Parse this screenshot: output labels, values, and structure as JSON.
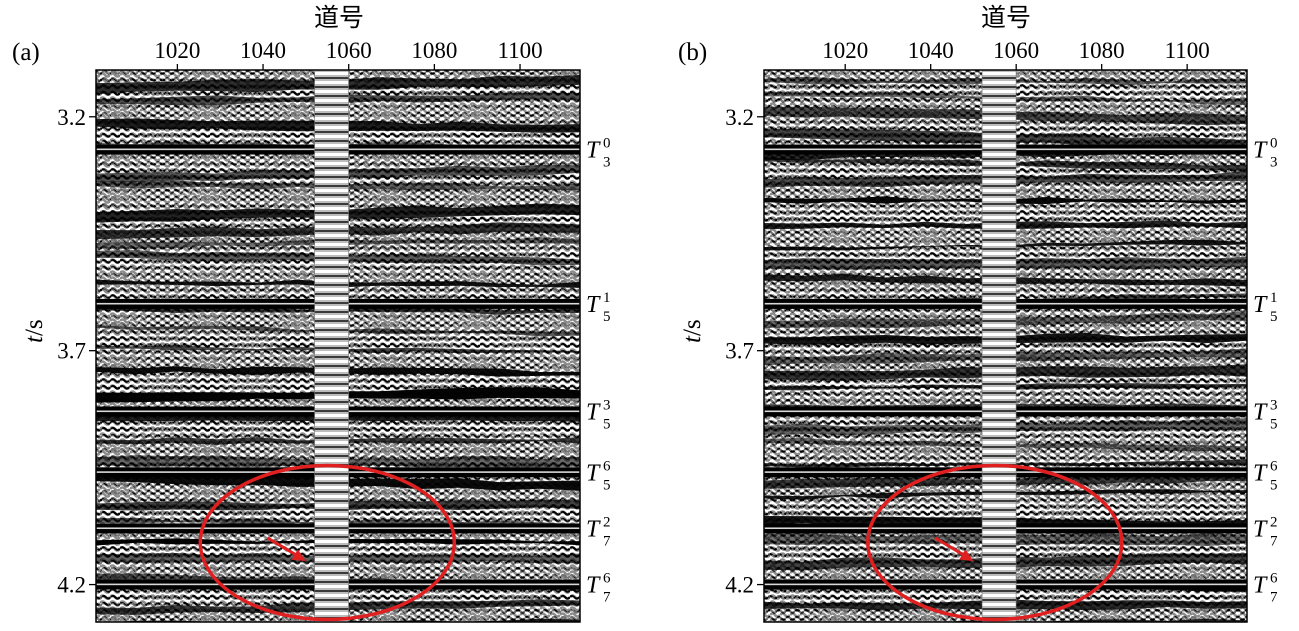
{
  "chart_data": [
    {
      "type": "heatmap",
      "panel_label": "(a)",
      "xlabel": "道号",
      "ylabel_var": "t",
      "ylabel_unit": "/s",
      "x_ticks": [
        1020,
        1040,
        1060,
        1080,
        1100
      ],
      "x_tick_labels": [
        "1020",
        "1040",
        "1060",
        "1080",
        "1100"
      ],
      "y_ticks": [
        3.2,
        3.7,
        4.2
      ],
      "y_tick_labels": [
        "3.2",
        "3.7",
        "4.2"
      ],
      "xlim": [
        1001,
        1114
      ],
      "ylim": [
        3.1,
        4.28
      ],
      "well_trace": 1056,
      "horizons": [
        {
          "base": "T",
          "sub": "3",
          "sup": "0",
          "t": 3.27
        },
        {
          "base": "T",
          "sub": "5",
          "sup": "1",
          "t": 3.6
        },
        {
          "base": "T",
          "sub": "5",
          "sup": "3",
          "t": 3.83
        },
        {
          "base": "T",
          "sub": "5",
          "sup": "6",
          "t": 3.96
        },
        {
          "base": "T",
          "sub": "7",
          "sup": "2",
          "t": 4.08
        },
        {
          "base": "T",
          "sub": "7",
          "sup": "6",
          "t": 4.2
        }
      ],
      "annotation_ellipse": {
        "center_trace": 1055,
        "center_t": 4.11,
        "color": "#e02020"
      },
      "annotation_arrow": {
        "from_trace": 1041,
        "from_t": 4.1,
        "to_trace": 1050,
        "to_t": 4.15,
        "color": "#e02020"
      }
    },
    {
      "type": "heatmap",
      "panel_label": "(b)",
      "xlabel": "道号",
      "ylabel_var": "t",
      "ylabel_unit": "/s",
      "x_ticks": [
        1020,
        1040,
        1060,
        1080,
        1100
      ],
      "x_tick_labels": [
        "1020",
        "1040",
        "1060",
        "1080",
        "1100"
      ],
      "y_ticks": [
        3.2,
        3.7,
        4.2
      ],
      "y_tick_labels": [
        "3.2",
        "3.7",
        "4.2"
      ],
      "xlim": [
        1001,
        1114
      ],
      "ylim": [
        3.1,
        4.28
      ],
      "well_trace": 1056,
      "horizons": [
        {
          "base": "T",
          "sub": "3",
          "sup": "0",
          "t": 3.27
        },
        {
          "base": "T",
          "sub": "5",
          "sup": "1",
          "t": 3.6
        },
        {
          "base": "T",
          "sub": "5",
          "sup": "3",
          "t": 3.83
        },
        {
          "base": "T",
          "sub": "5",
          "sup": "6",
          "t": 3.96
        },
        {
          "base": "T",
          "sub": "7",
          "sup": "2",
          "t": 4.08
        },
        {
          "base": "T",
          "sub": "7",
          "sup": "6",
          "t": 4.2
        }
      ],
      "annotation_ellipse": {
        "center_trace": 1055,
        "center_t": 4.11,
        "color": "#e02020"
      },
      "annotation_arrow": {
        "from_trace": 1041,
        "from_t": 4.1,
        "to_trace": 1050,
        "to_t": 4.15,
        "color": "#e02020"
      }
    }
  ]
}
